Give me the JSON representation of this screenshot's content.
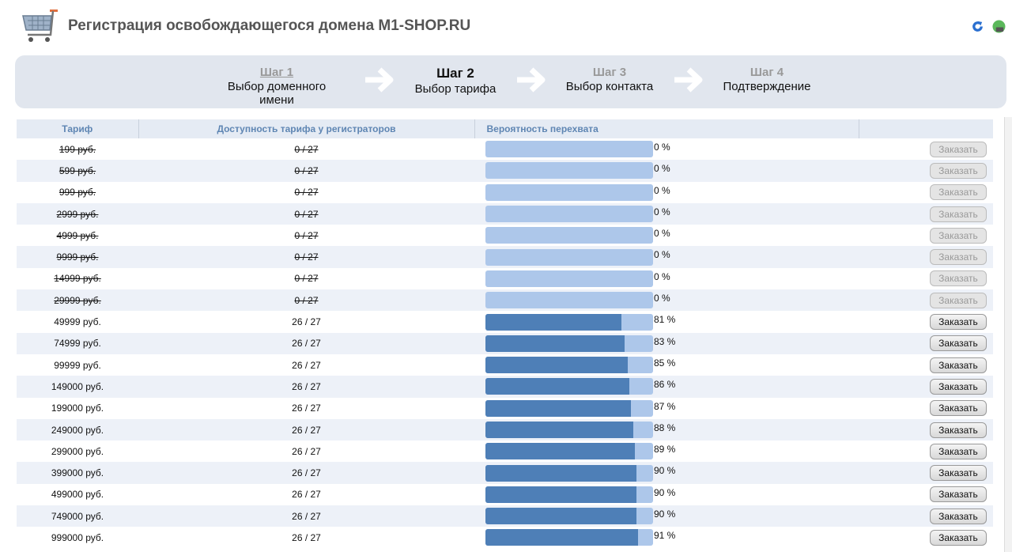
{
  "header": {
    "title": "Регистрация освобождающегося домена M1-SHOP.RU",
    "icons": [
      "shopping-cart-icon",
      "refresh-icon",
      "map-icon"
    ]
  },
  "steps": [
    {
      "num": "Шаг 1",
      "label": "Выбор доменного имени",
      "state": "done"
    },
    {
      "num": "Шаг 2",
      "label": "Выбор тарифа",
      "state": "current"
    },
    {
      "num": "Шаг 3",
      "label": "Выбор контакта",
      "state": "pending"
    },
    {
      "num": "Шаг 4",
      "label": "Подтверждение",
      "state": "pending"
    }
  ],
  "table": {
    "headers": [
      "Тариф",
      "Доступность тарифа у регистраторов",
      "Вероятность перехвата",
      ""
    ],
    "order_label": "Заказать",
    "rows": [
      {
        "price": "199 руб.",
        "avail": "0 / 27",
        "prob": 0,
        "prob_text": "0 %",
        "active": false
      },
      {
        "price": "599 руб.",
        "avail": "0 / 27",
        "prob": 0,
        "prob_text": "0 %",
        "active": false
      },
      {
        "price": "999 руб.",
        "avail": "0 / 27",
        "prob": 0,
        "prob_text": "0 %",
        "active": false
      },
      {
        "price": "2999 руб.",
        "avail": "0 / 27",
        "prob": 0,
        "prob_text": "0 %",
        "active": false
      },
      {
        "price": "4999 руб.",
        "avail": "0 / 27",
        "prob": 0,
        "prob_text": "0 %",
        "active": false
      },
      {
        "price": "9999 руб.",
        "avail": "0 / 27",
        "prob": 0,
        "prob_text": "0 %",
        "active": false
      },
      {
        "price": "14999 руб.",
        "avail": "0 / 27",
        "prob": 0,
        "prob_text": "0 %",
        "active": false
      },
      {
        "price": "29999 руб.",
        "avail": "0 / 27",
        "prob": 0,
        "prob_text": "0 %",
        "active": false
      },
      {
        "price": "49999 руб.",
        "avail": "26 / 27",
        "prob": 81,
        "prob_text": "81 %",
        "active": true
      },
      {
        "price": "74999 руб.",
        "avail": "26 / 27",
        "prob": 83,
        "prob_text": "83 %",
        "active": true
      },
      {
        "price": "99999 руб.",
        "avail": "26 / 27",
        "prob": 85,
        "prob_text": "85 %",
        "active": true
      },
      {
        "price": "149000 руб.",
        "avail": "26 / 27",
        "prob": 86,
        "prob_text": "86 %",
        "active": true
      },
      {
        "price": "199000 руб.",
        "avail": "26 / 27",
        "prob": 87,
        "prob_text": "87 %",
        "active": true
      },
      {
        "price": "249000 руб.",
        "avail": "26 / 27",
        "prob": 88,
        "prob_text": "88 %",
        "active": true
      },
      {
        "price": "299000 руб.",
        "avail": "26 / 27",
        "prob": 89,
        "prob_text": "89 %",
        "active": true
      },
      {
        "price": "399000 руб.",
        "avail": "26 / 27",
        "prob": 90,
        "prob_text": "90 %",
        "active": true
      },
      {
        "price": "499000 руб.",
        "avail": "26 / 27",
        "prob": 90,
        "prob_text": "90 %",
        "active": true
      },
      {
        "price": "749000 руб.",
        "avail": "26 / 27",
        "prob": 90,
        "prob_text": "90 %",
        "active": true
      },
      {
        "price": "999000 руб.",
        "avail": "26 / 27",
        "prob": 91,
        "prob_text": "91 %",
        "active": true
      }
    ]
  }
}
